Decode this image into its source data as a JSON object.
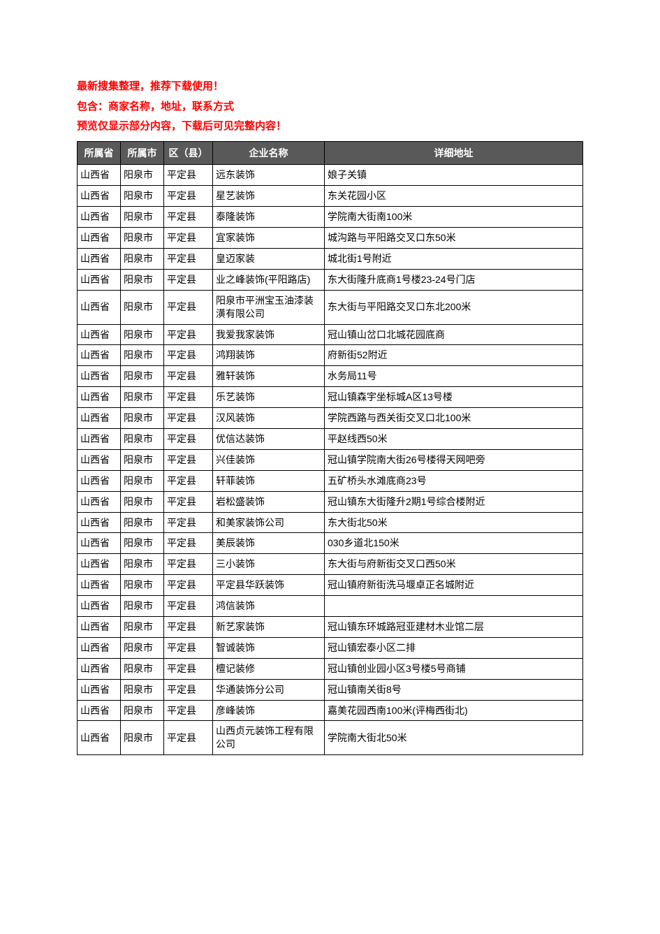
{
  "intro": {
    "line1": "最新搜集整理，推荐下载使用！",
    "line2": "包含：商家名称，地址，联系方式",
    "line3": "预览仅显示部分内容，下载后可见完整内容！"
  },
  "table": {
    "headers": {
      "province": "所属省",
      "city": "所属市",
      "district": "区（县）",
      "company": "企业名称",
      "address": "详细地址"
    },
    "rows": [
      {
        "province": "山西省",
        "city": "阳泉市",
        "district": "平定县",
        "company": "远东装饰",
        "address": "娘子关镇"
      },
      {
        "province": "山西省",
        "city": "阳泉市",
        "district": "平定县",
        "company": "星艺装饰",
        "address": "东关花园小区"
      },
      {
        "province": "山西省",
        "city": "阳泉市",
        "district": "平定县",
        "company": "泰隆装饰",
        "address": "学院南大街南100米"
      },
      {
        "province": "山西省",
        "city": "阳泉市",
        "district": "平定县",
        "company": "宜家装饰",
        "address": "城沟路与平阳路交叉口东50米"
      },
      {
        "province": "山西省",
        "city": "阳泉市",
        "district": "平定县",
        "company": "皇迈家装",
        "address": "城北街1号附近"
      },
      {
        "province": "山西省",
        "city": "阳泉市",
        "district": "平定县",
        "company": "业之峰装饰(平阳路店)",
        "address": "东大街隆升底商1号楼23-24号门店"
      },
      {
        "province": "山西省",
        "city": "阳泉市",
        "district": "平定县",
        "company": "阳泉市平洲宝玉油漆装潢有限公司",
        "address": "东大街与平阳路交叉口东北200米"
      },
      {
        "province": "山西省",
        "city": "阳泉市",
        "district": "平定县",
        "company": "我爱我家装饰",
        "address": "冠山镇山岔口北城花园底商"
      },
      {
        "province": "山西省",
        "city": "阳泉市",
        "district": "平定县",
        "company": "鸿翔装饰",
        "address": "府新街52附近"
      },
      {
        "province": "山西省",
        "city": "阳泉市",
        "district": "平定县",
        "company": "雅轩装饰",
        "address": "水务局11号"
      },
      {
        "province": "山西省",
        "city": "阳泉市",
        "district": "平定县",
        "company": "乐艺装饰",
        "address": "冠山镇森宇坐标城A区13号楼"
      },
      {
        "province": "山西省",
        "city": "阳泉市",
        "district": "平定县",
        "company": "汉风装饰",
        "address": "学院西路与西关街交叉口北100米"
      },
      {
        "province": "山西省",
        "city": "阳泉市",
        "district": "平定县",
        "company": "优信达装饰",
        "address": "平赵线西50米"
      },
      {
        "province": "山西省",
        "city": "阳泉市",
        "district": "平定县",
        "company": "兴佳装饰",
        "address": "冠山镇学院南大街26号楼得天网吧旁"
      },
      {
        "province": "山西省",
        "city": "阳泉市",
        "district": "平定县",
        "company": "轩菲装饰",
        "address": "五矿桥头水滩底商23号"
      },
      {
        "province": "山西省",
        "city": "阳泉市",
        "district": "平定县",
        "company": "岩松盛装饰",
        "address": "冠山镇东大街隆升2期1号综合楼附近"
      },
      {
        "province": "山西省",
        "city": "阳泉市",
        "district": "平定县",
        "company": "和美家装饰公司",
        "address": "东大街北50米"
      },
      {
        "province": "山西省",
        "city": "阳泉市",
        "district": "平定县",
        "company": "美辰装饰",
        "address": "030乡道北150米"
      },
      {
        "province": "山西省",
        "city": "阳泉市",
        "district": "平定县",
        "company": "三小装饰",
        "address": "东大街与府新街交叉口西50米"
      },
      {
        "province": "山西省",
        "city": "阳泉市",
        "district": "平定县",
        "company": "平定县华跃装饰",
        "address": "冠山镇府新街洗马堰卓正名城附近"
      },
      {
        "province": "山西省",
        "city": "阳泉市",
        "district": "平定县",
        "company": "鸿信装饰",
        "address": ""
      },
      {
        "province": "山西省",
        "city": "阳泉市",
        "district": "平定县",
        "company": "新艺家装饰",
        "address": "冠山镇东环城路冠亚建材木业馆二层"
      },
      {
        "province": "山西省",
        "city": "阳泉市",
        "district": "平定县",
        "company": "智诚装饰",
        "address": "冠山镇宏泰小区二排"
      },
      {
        "province": "山西省",
        "city": "阳泉市",
        "district": "平定县",
        "company": "檀记装修",
        "address": "冠山镇创业园小区3号楼5号商铺"
      },
      {
        "province": "山西省",
        "city": "阳泉市",
        "district": "平定县",
        "company": "华通装饰分公司",
        "address": "冠山镇南关街8号"
      },
      {
        "province": "山西省",
        "city": "阳泉市",
        "district": "平定县",
        "company": "彦峰装饰",
        "address": "嘉美花园西南100米(评梅西街北)"
      },
      {
        "province": "山西省",
        "city": "阳泉市",
        "district": "平定县",
        "company": "山西贞元装饰工程有限公司",
        "address": "学院南大街北50米"
      }
    ]
  },
  "styles": {
    "intro_color": "#ff0000",
    "header_bg": "#595959",
    "header_fg": "#ffffff",
    "border_color": "#000000",
    "page_bg": "#ffffff"
  }
}
